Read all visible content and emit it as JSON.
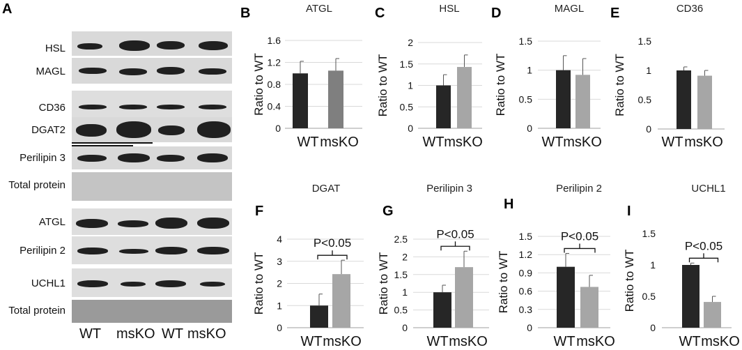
{
  "panels": {
    "a": "A",
    "b": "B",
    "c": "C",
    "d": "D",
    "e": "E",
    "f": "F",
    "g": "G",
    "h": "H",
    "i": "I"
  },
  "blot": {
    "rows": [
      "HSL",
      "MAGL",
      "CD36",
      "DGAT2",
      "Perilipin 3",
      "Total protein",
      "ATGL",
      "Perilipin 2",
      "UCHL1",
      "Total protein"
    ],
    "lanes": [
      "WT",
      "msKO",
      "WT",
      "msKO"
    ]
  },
  "colors": {
    "wt": "#262626",
    "mskoDark": "#7f7f7f",
    "msko": "#a6a6a6",
    "grid": "#d9d9d9",
    "axis": "#bfbfbf"
  },
  "chart_data": [
    {
      "type": "bar",
      "title": "ATGL",
      "ylabel": "Ratio to WT",
      "categories": [
        "WT",
        "msKO"
      ],
      "values": [
        1.0,
        1.05
      ],
      "errors": [
        0.22,
        0.22
      ],
      "ylim": [
        0,
        1.6
      ],
      "yticks": [
        "0",
        "0.4",
        "0.8",
        "1.2",
        "1.6"
      ],
      "grid": true,
      "annotation": ""
    },
    {
      "type": "bar",
      "title": "HSL",
      "ylabel": "Ratio to WT",
      "categories": [
        "WT",
        "msKO"
      ],
      "values": [
        1.0,
        1.43
      ],
      "errors": [
        0.25,
        0.28
      ],
      "ylim": [
        0,
        2
      ],
      "yticks": [
        "0",
        "0.5",
        "1",
        "1.5",
        "2"
      ],
      "grid": true,
      "annotation": ""
    },
    {
      "type": "bar",
      "title": "MAGL",
      "ylabel": "Ratio to WT",
      "categories": [
        "WT",
        "msKO"
      ],
      "values": [
        1.0,
        0.92
      ],
      "errors": [
        0.25,
        0.28
      ],
      "ylim": [
        0,
        1.5
      ],
      "yticks": [
        "0",
        "0.5",
        "1",
        "1.5"
      ],
      "grid": true,
      "annotation": ""
    },
    {
      "type": "bar",
      "title": "CD36",
      "ylabel": "Ratio to WT",
      "categories": [
        "WT",
        "msKO"
      ],
      "values": [
        1.0,
        0.91
      ],
      "errors": [
        0.06,
        0.09
      ],
      "ylim": [
        0,
        1.5
      ],
      "yticks": [
        "0",
        "0.5",
        "1",
        "1.5"
      ],
      "grid": false,
      "annotation": ""
    },
    {
      "type": "bar",
      "title": "DGAT",
      "ylabel": "Ratio to WT",
      "categories": [
        "WT",
        "msKO"
      ],
      "values": [
        1.0,
        2.42
      ],
      "errors": [
        0.52,
        0.63
      ],
      "ylim": [
        0,
        4
      ],
      "yticks": [
        "0",
        "1",
        "2",
        "3",
        "4"
      ],
      "grid": true,
      "annotation": "P<0.05"
    },
    {
      "type": "bar",
      "title": "Perilipin 3",
      "ylabel": "Ratio to WT",
      "categories": [
        "WT",
        "msKO"
      ],
      "values": [
        1.0,
        1.71
      ],
      "errors": [
        0.2,
        0.45
      ],
      "ylim": [
        0,
        2.5
      ],
      "yticks": [
        "0",
        "0.5",
        "1",
        "1.5",
        "2",
        "2.5"
      ],
      "grid": true,
      "annotation": "P<0.05"
    },
    {
      "type": "bar",
      "title": "Perilipin 2",
      "ylabel": "Ratio to WT",
      "categories": [
        "WT",
        "msKO"
      ],
      "values": [
        1.0,
        0.67
      ],
      "errors": [
        0.22,
        0.19
      ],
      "ylim": [
        0,
        1.5
      ],
      "yticks": [
        "0",
        "0.3",
        "0.6",
        "0.9",
        "1.2",
        "1.5"
      ],
      "grid": true,
      "annotation": "P<0.05"
    },
    {
      "type": "bar",
      "title": "UCHL1",
      "ylabel": "Ratio to WT",
      "categories": [
        "WT",
        "msKO"
      ],
      "values": [
        1.0,
        0.41
      ],
      "errors": [
        0.03,
        0.09
      ],
      "ylim": [
        0,
        1.5
      ],
      "yticks": [
        "0",
        "0.5",
        "1",
        "1.5"
      ],
      "grid": false,
      "annotation": "P<0.05"
    }
  ]
}
